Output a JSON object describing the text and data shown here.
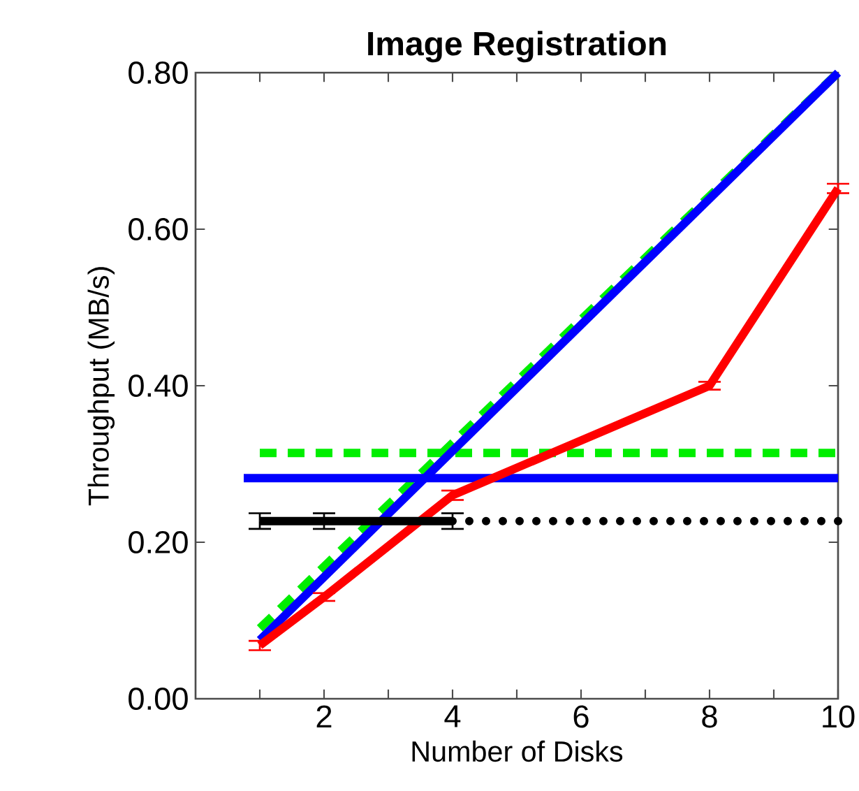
{
  "chart_data": {
    "type": "line",
    "title": "Image Registration",
    "xlabel": "Number of Disks",
    "ylabel": "Throughput (MB/s)",
    "xlim": [
      0,
      10
    ],
    "ylim": [
      0,
      0.8
    ],
    "xticks": [
      {
        "value": 1,
        "label": null
      },
      2,
      {
        "value": 3,
        "label": null
      },
      4,
      {
        "value": 5,
        "label": null
      },
      6,
      {
        "value": 7,
        "label": null
      },
      8,
      {
        "value": 9,
        "label": null
      },
      10
    ],
    "yticks": [
      {
        "value": 0,
        "label": "0.00"
      },
      {
        "value": 0.2,
        "label": "0.20"
      },
      {
        "value": 0.4,
        "label": "0.40"
      },
      {
        "value": 0.6,
        "label": "0.60"
      },
      {
        "value": 0.8,
        "label": "0.80"
      }
    ],
    "grid": false,
    "legend": false,
    "marker": "none",
    "series": [
      {
        "color": "#00ee00",
        "line_style": "dashed",
        "x": [
          1,
          10
        ],
        "values": [
          0.09,
          0.8
        ]
      },
      {
        "color": "#00ee00",
        "line_style": "dashed",
        "x": [
          1,
          10
        ],
        "values": [
          0.314,
          0.314
        ]
      },
      {
        "color": "#0000ff",
        "line_style": "solid",
        "x": [
          1,
          10
        ],
        "values": [
          0.075,
          0.8
        ]
      },
      {
        "color": "#0000ff",
        "line_style": "solid",
        "x": [
          0.75,
          10
        ],
        "values": [
          0.282,
          0.282
        ]
      },
      {
        "color": "#ff0000",
        "line_style": "solid",
        "x": [
          1,
          2,
          4,
          8,
          10
        ],
        "values": [
          0.068,
          0.13,
          0.26,
          0.4,
          0.652
        ],
        "errors": [
          0.006,
          0.005,
          0.006,
          0.005,
          0.006
        ]
      },
      {
        "color": "#000000",
        "line_style": "solid",
        "x": [
          1,
          2,
          4
        ],
        "values": [
          0.227,
          0.227,
          0.227
        ],
        "errors": [
          0.01,
          0.01,
          0.01
        ]
      },
      {
        "color": "#000000",
        "line_style": "dotted",
        "x": [
          4,
          10
        ],
        "values": [
          0.227,
          0.227
        ]
      }
    ]
  }
}
